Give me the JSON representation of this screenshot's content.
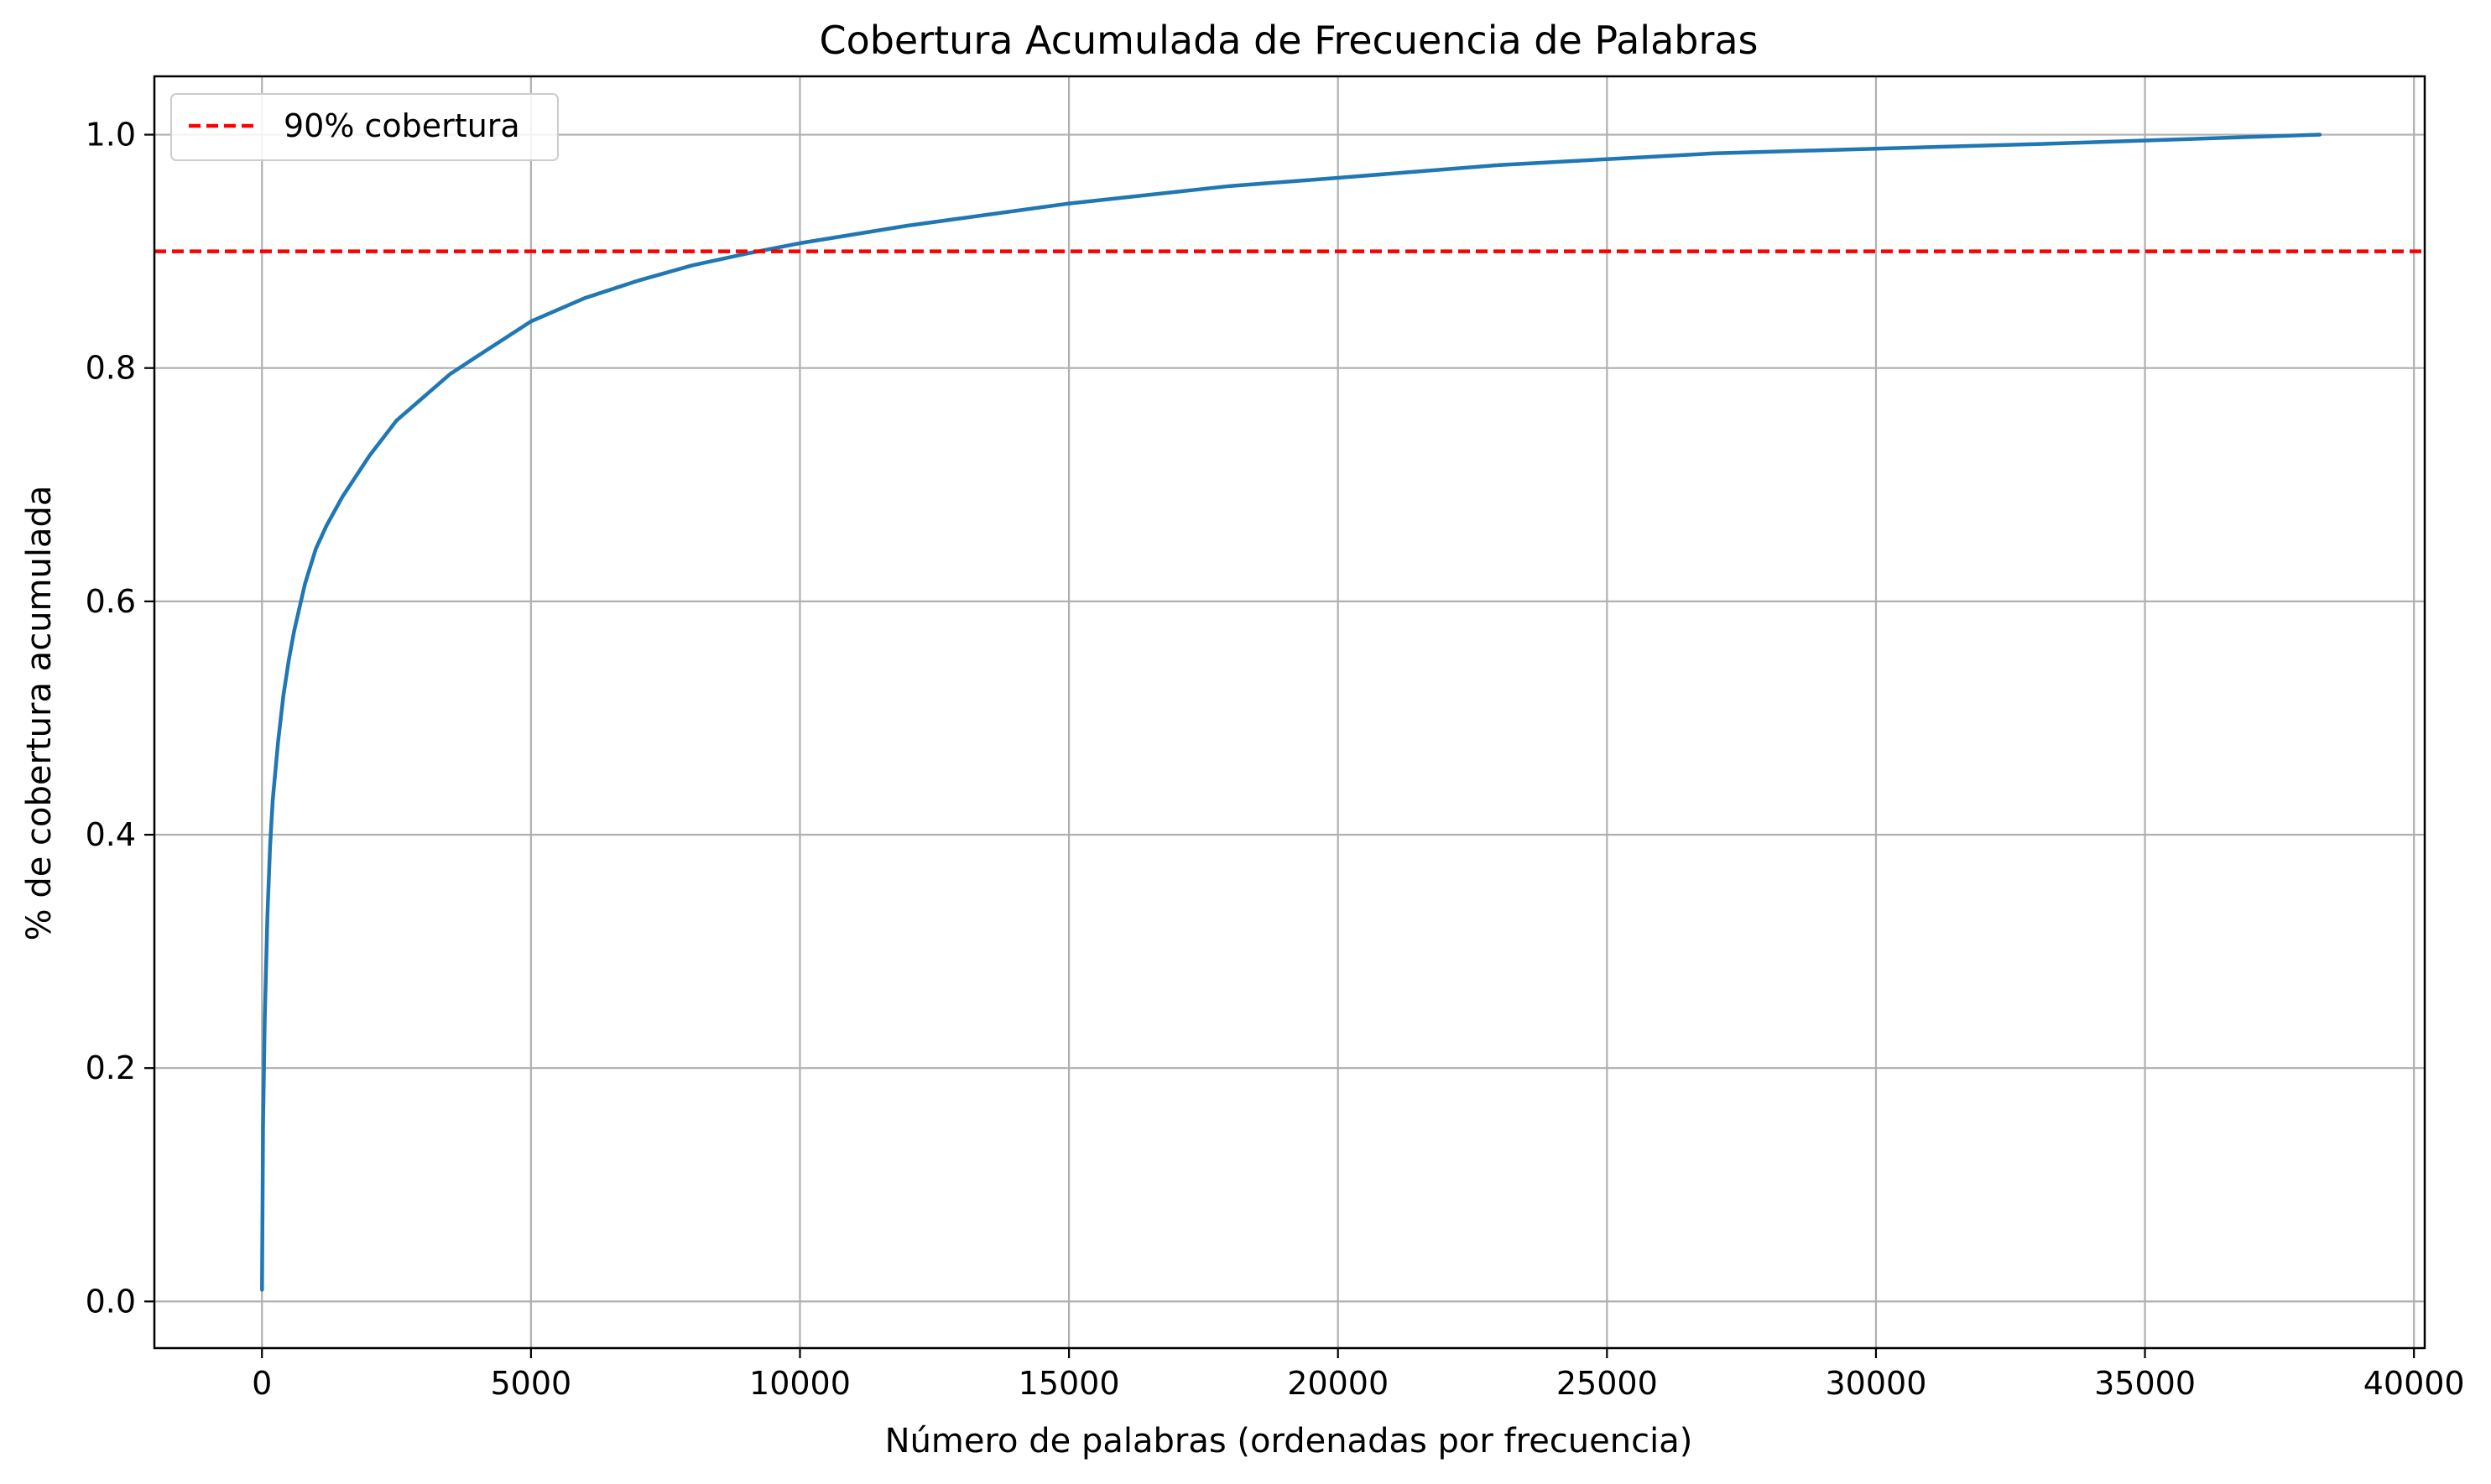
{
  "chart_data": {
    "type": "line",
    "title": "Cobertura Acumulada de Frecuencia de Palabras",
    "xlabel": "Número de palabras (ordenadas por frecuencia)",
    "ylabel": "% de cobertura acumulada",
    "xlim": [
      -2000,
      40200
    ],
    "ylim": [
      -0.04,
      1.05
    ],
    "xticks": [
      0,
      5000,
      10000,
      15000,
      20000,
      25000,
      30000,
      35000,
      40000
    ],
    "xtick_labels": [
      "0",
      "5000",
      "10000",
      "15000",
      "20000",
      "25000",
      "30000",
      "35000",
      "40000"
    ],
    "yticks": [
      0.0,
      0.2,
      0.4,
      0.6,
      0.8,
      1.0
    ],
    "ytick_labels": [
      "0.0",
      "0.2",
      "0.4",
      "0.6",
      "0.8",
      "1.0"
    ],
    "grid": true,
    "legend_position": "top-left",
    "series": [
      {
        "color": "#1f77b4",
        "style": "solid",
        "x": [
          1,
          20,
          50,
          100,
          150,
          200,
          300,
          400,
          500,
          600,
          800,
          1000,
          1200,
          1500,
          2000,
          2500,
          3000,
          3500,
          4000,
          5000,
          6000,
          7000,
          8000,
          9000,
          10000,
          12000,
          15000,
          18000,
          20000,
          23000,
          25000,
          27000,
          30000,
          33000,
          35000,
          38250
        ],
        "y": [
          0.01,
          0.15,
          0.24,
          0.33,
          0.39,
          0.43,
          0.48,
          0.52,
          0.55,
          0.575,
          0.615,
          0.645,
          0.665,
          0.69,
          0.725,
          0.755,
          0.775,
          0.795,
          0.81,
          0.84,
          0.86,
          0.875,
          0.888,
          0.898,
          0.907,
          0.922,
          0.941,
          0.956,
          0.963,
          0.974,
          0.979,
          0.984,
          0.988,
          0.992,
          0.995,
          1.0
        ]
      },
      {
        "name": "90% cobertura",
        "color": "#ff0000",
        "style": "dashed",
        "hline": 0.9
      }
    ]
  }
}
